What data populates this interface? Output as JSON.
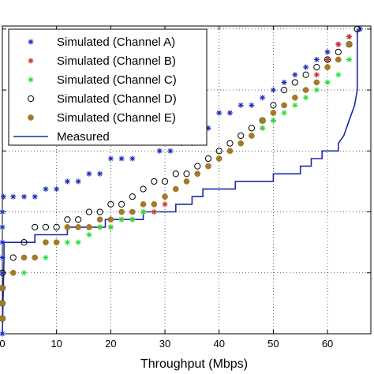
{
  "chart_data": {
    "type": "scatter",
    "xlabel": "Throughput (Mbps)",
    "ylabel": "",
    "xlim": [
      0,
      68
    ],
    "ylim": [
      0,
      1.01
    ],
    "xticks": [
      0,
      10,
      20,
      30,
      40,
      50,
      60
    ],
    "ytick_values": [
      0,
      0.2,
      0.4,
      0.6,
      0.8,
      1.0
    ],
    "grid": true,
    "legend_position": "top-left",
    "colors": {
      "channel_a": "#1f2bbf",
      "channel_b": "#d42a2a",
      "channel_c": "#22e03a",
      "channel_d": "#000000",
      "channel_e": "#a47a28",
      "measured": "#1c2aa8"
    },
    "series": [
      {
        "name": "Simulated (Channel A)",
        "marker": "star",
        "color": "#1f2bbf",
        "points": [
          [
            0,
            0
          ],
          [
            0,
            0.05
          ],
          [
            0,
            0.1
          ],
          [
            0,
            0.15
          ],
          [
            0,
            0.2
          ],
          [
            0,
            0.25
          ],
          [
            0,
            0.3
          ],
          [
            0,
            0.35
          ],
          [
            0,
            0.4
          ],
          [
            0.2,
            0.45
          ],
          [
            2,
            0.45
          ],
          [
            4,
            0.45
          ],
          [
            6,
            0.45
          ],
          [
            8,
            0.475
          ],
          [
            10,
            0.475
          ],
          [
            12,
            0.5
          ],
          [
            14,
            0.5
          ],
          [
            16,
            0.525
          ],
          [
            18,
            0.525
          ],
          [
            20,
            0.575
          ],
          [
            22,
            0.575
          ],
          [
            24,
            0.575
          ],
          [
            29,
            0.6
          ],
          [
            31,
            0.6
          ],
          [
            33,
            0.625
          ],
          [
            35,
            0.625
          ],
          [
            37,
            0.675
          ],
          [
            38,
            0.675
          ],
          [
            40,
            0.725
          ],
          [
            42,
            0.725
          ],
          [
            44,
            0.75
          ],
          [
            46,
            0.75
          ],
          [
            48,
            0.775
          ],
          [
            50,
            0.8
          ],
          [
            52,
            0.825
          ],
          [
            54,
            0.85
          ],
          [
            56,
            0.875
          ],
          [
            58,
            0.9
          ],
          [
            60,
            0.925
          ],
          [
            62,
            0.95
          ],
          [
            64,
            0.975
          ],
          [
            66,
            1.0
          ]
        ]
      },
      {
        "name": "Simulated (Channel B)",
        "marker": "star",
        "color": "#d42a2a",
        "points": [
          [
            0,
            0.05
          ],
          [
            0,
            0.1
          ],
          [
            0,
            0.15
          ],
          [
            2,
            0.2
          ],
          [
            4,
            0.25
          ],
          [
            6,
            0.25
          ],
          [
            8,
            0.3
          ],
          [
            10,
            0.3
          ],
          [
            12,
            0.35
          ],
          [
            14,
            0.35
          ],
          [
            16,
            0.35
          ],
          [
            18,
            0.35
          ],
          [
            20,
            0.35
          ],
          [
            22,
            0.375
          ],
          [
            24,
            0.375
          ],
          [
            26,
            0.4
          ],
          [
            28,
            0.4
          ],
          [
            30,
            0.425
          ],
          [
            32,
            0.475
          ],
          [
            34,
            0.5
          ],
          [
            36,
            0.525
          ],
          [
            38,
            0.55
          ],
          [
            40,
            0.575
          ],
          [
            42,
            0.6
          ],
          [
            44,
            0.625
          ],
          [
            46,
            0.65
          ],
          [
            48,
            0.675
          ],
          [
            50,
            0.7
          ],
          [
            52,
            0.75
          ],
          [
            54,
            0.775
          ],
          [
            56,
            0.8
          ],
          [
            58,
            0.85
          ],
          [
            60,
            0.9
          ],
          [
            62,
            0.95
          ],
          [
            64,
            0.975
          ]
        ]
      },
      {
        "name": "Simulated (Channel C)",
        "marker": "star",
        "color": "#22e03a",
        "points": [
          [
            0,
            0.05
          ],
          [
            0,
            0.1
          ],
          [
            0,
            0.15
          ],
          [
            2,
            0.2
          ],
          [
            4,
            0.2
          ],
          [
            6,
            0.25
          ],
          [
            8,
            0.25
          ],
          [
            10,
            0.3
          ],
          [
            12,
            0.3
          ],
          [
            14,
            0.3
          ],
          [
            16,
            0.325
          ],
          [
            18,
            0.35
          ],
          [
            20,
            0.35
          ],
          [
            22,
            0.375
          ],
          [
            24,
            0.375
          ],
          [
            26,
            0.4
          ],
          [
            28,
            0.425
          ],
          [
            30,
            0.45
          ],
          [
            32,
            0.475
          ],
          [
            34,
            0.5
          ],
          [
            36,
            0.525
          ],
          [
            38,
            0.55
          ],
          [
            40,
            0.575
          ],
          [
            42,
            0.6
          ],
          [
            44,
            0.625
          ],
          [
            46,
            0.65
          ],
          [
            48,
            0.675
          ],
          [
            50,
            0.7
          ],
          [
            52,
            0.725
          ],
          [
            54,
            0.75
          ],
          [
            56,
            0.775
          ],
          [
            58,
            0.8
          ],
          [
            60,
            0.825
          ],
          [
            62,
            0.85
          ],
          [
            64,
            0.9
          ]
        ]
      },
      {
        "name": "Simulated (Channel D)",
        "marker": "circle",
        "color": "#000000",
        "points": [
          [
            0,
            0.05
          ],
          [
            0,
            0.1
          ],
          [
            0,
            0.15
          ],
          [
            0,
            0.2
          ],
          [
            2,
            0.25
          ],
          [
            4,
            0.3
          ],
          [
            6,
            0.35
          ],
          [
            8,
            0.35
          ],
          [
            10,
            0.35
          ],
          [
            12,
            0.375
          ],
          [
            14,
            0.375
          ],
          [
            16,
            0.4
          ],
          [
            18,
            0.4
          ],
          [
            20,
            0.425
          ],
          [
            22,
            0.425
          ],
          [
            24,
            0.45
          ],
          [
            26,
            0.475
          ],
          [
            28,
            0.5
          ],
          [
            30,
            0.5
          ],
          [
            32,
            0.525
          ],
          [
            34,
            0.525
          ],
          [
            36,
            0.55
          ],
          [
            38,
            0.575
          ],
          [
            40,
            0.6
          ],
          [
            42,
            0.625
          ],
          [
            44,
            0.65
          ],
          [
            46,
            0.675
          ],
          [
            48,
            0.7
          ],
          [
            50,
            0.75
          ],
          [
            52,
            0.8
          ],
          [
            54,
            0.825
          ],
          [
            56,
            0.85
          ],
          [
            58,
            0.875
          ],
          [
            60,
            0.9
          ],
          [
            62,
            0.925
          ],
          [
            64,
            0.95
          ],
          [
            65.5,
            1.0
          ]
        ]
      },
      {
        "name": "Simulated (Channel E)",
        "marker": "filled-circle",
        "color": "#a47a28",
        "points": [
          [
            0,
            0.05
          ],
          [
            0,
            0.1
          ],
          [
            0,
            0.15
          ],
          [
            2,
            0.2
          ],
          [
            4,
            0.25
          ],
          [
            6,
            0.25
          ],
          [
            8,
            0.3
          ],
          [
            10,
            0.3
          ],
          [
            12,
            0.35
          ],
          [
            14,
            0.35
          ],
          [
            16,
            0.35
          ],
          [
            18,
            0.375
          ],
          [
            20,
            0.375
          ],
          [
            22,
            0.4
          ],
          [
            24,
            0.4
          ],
          [
            26,
            0.425
          ],
          [
            28,
            0.425
          ],
          [
            30,
            0.45
          ],
          [
            32,
            0.475
          ],
          [
            34,
            0.5
          ],
          [
            36,
            0.525
          ],
          [
            38,
            0.55
          ],
          [
            40,
            0.575
          ],
          [
            42,
            0.6
          ],
          [
            44,
            0.625
          ],
          [
            46,
            0.65
          ],
          [
            48,
            0.7
          ],
          [
            50,
            0.725
          ],
          [
            52,
            0.75
          ],
          [
            54,
            0.775
          ],
          [
            56,
            0.8
          ],
          [
            58,
            0.825
          ],
          [
            60,
            0.875
          ],
          [
            62,
            0.9
          ],
          [
            64,
            0.95
          ]
        ]
      }
    ],
    "measured": {
      "name": "Measured",
      "color": "#1c2aa8",
      "points": [
        [
          0,
          0
        ],
        [
          0.3,
          0.25
        ],
        [
          0.3,
          0.3
        ],
        [
          6,
          0.3
        ],
        [
          6,
          0.325
        ],
        [
          12,
          0.325
        ],
        [
          12,
          0.35
        ],
        [
          19,
          0.35
        ],
        [
          19,
          0.375
        ],
        [
          26,
          0.375
        ],
        [
          26,
          0.4
        ],
        [
          32,
          0.4
        ],
        [
          32,
          0.425
        ],
        [
          35,
          0.425
        ],
        [
          35,
          0.45
        ],
        [
          37,
          0.45
        ],
        [
          37,
          0.475
        ],
        [
          43,
          0.475
        ],
        [
          43,
          0.5
        ],
        [
          50,
          0.5
        ],
        [
          50,
          0.525
        ],
        [
          55,
          0.525
        ],
        [
          55,
          0.55
        ],
        [
          57,
          0.55
        ],
        [
          57,
          0.575
        ],
        [
          59,
          0.575
        ],
        [
          59,
          0.6
        ],
        [
          62,
          0.6
        ],
        [
          62,
          0.625
        ],
        [
          63,
          0.65
        ],
        [
          64,
          0.7
        ],
        [
          65,
          0.75
        ],
        [
          65.5,
          0.8
        ],
        [
          65.5,
          1.0
        ]
      ]
    }
  }
}
